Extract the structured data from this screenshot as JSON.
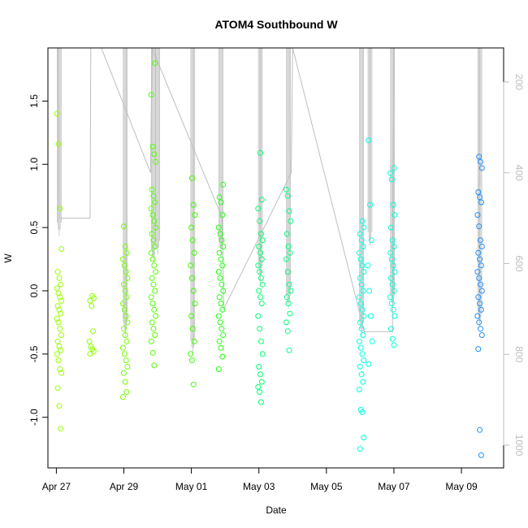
{
  "chart_data": {
    "type": "scatter",
    "title": "ATOM4 Southbound W",
    "xlabel": "Date",
    "ylabel": "W",
    "x_range": [
      "2012-04-26T18:00",
      "2012-05-10T06:00"
    ],
    "ylim": [
      -1.4,
      1.92
    ],
    "x_ticks": [
      {
        "date": "2012-04-27",
        "label": "Apr 27"
      },
      {
        "date": "2012-04-29",
        "label": "Apr 29"
      },
      {
        "date": "2012-05-01",
        "label": "May 01"
      },
      {
        "date": "2012-05-03",
        "label": "May 03"
      },
      {
        "date": "2012-05-05",
        "label": "May 05"
      },
      {
        "date": "2012-05-07",
        "label": "May 07"
      },
      {
        "date": "2012-05-09",
        "label": "May 09"
      }
    ],
    "y_ticks": [
      -1.0,
      -0.5,
      0.0,
      0.5,
      1.0,
      1.5
    ],
    "y2_ticks": [
      200,
      400,
      600,
      800,
      1000
    ],
    "y2_range": [
      125,
      1050
    ],
    "grid": false,
    "legend": "none",
    "marker": "open-circle",
    "color_encoding": "date (yellow-green to blue)",
    "groups": [
      {
        "time": "2012-04-27T02:00",
        "color": "#99ff00",
        "w": [
          1.4,
          1.16,
          0.65,
          0.33,
          0.15,
          0.1,
          0.05,
          0.02,
          -0.02,
          -0.05,
          -0.08,
          -0.12,
          -0.15,
          -0.18,
          -0.22,
          -0.25,
          -0.3,
          -0.35,
          -0.4,
          -0.44,
          -0.47,
          -0.5,
          -0.55,
          -0.62,
          -0.65,
          -0.77,
          -0.91,
          -1.09
        ]
      },
      {
        "time": "2012-04-28T01:00",
        "color": "#8cff00",
        "w": [
          -0.04,
          -0.06,
          -0.08,
          -0.12,
          -0.32,
          -0.4,
          -0.44,
          -0.46,
          -0.48,
          -0.5
        ]
      },
      {
        "time": "2012-04-29T01:00",
        "color": "#70ff00",
        "w": [
          0.51,
          0.35,
          0.3,
          0.25,
          0.2,
          0.15,
          0.1,
          0.05,
          0.0,
          -0.05,
          -0.1,
          -0.15,
          -0.2,
          -0.25,
          -0.3,
          -0.35,
          -0.4,
          -0.45,
          -0.5,
          -0.55,
          -0.6,
          -0.65,
          -0.72,
          -0.8,
          -0.84
        ]
      },
      {
        "time": "2012-04-29T21:00",
        "color": "#50ff00",
        "w": [
          1.8,
          1.55,
          1.14,
          1.08,
          1.02,
          0.8,
          0.75,
          0.7,
          0.65,
          0.6,
          0.55,
          0.5,
          0.45,
          0.4,
          0.35,
          0.3,
          0.25,
          0.2,
          0.15,
          0.1,
          0.05,
          0.0,
          -0.05,
          -0.1,
          -0.15,
          -0.2,
          -0.25,
          -0.3,
          -0.35,
          -0.4,
          -0.49,
          -0.59
        ]
      },
      {
        "time": "2012-05-01T01:00",
        "color": "#3aff00",
        "w": [
          0.89,
          0.68,
          0.6,
          0.5,
          0.4,
          0.3,
          0.2,
          0.1,
          0.0,
          -0.1,
          -0.2,
          -0.3,
          -0.4,
          -0.5,
          -0.55,
          -0.74
        ]
      },
      {
        "time": "2012-05-01T21:00",
        "color": "#22ff10",
        "w": [
          0.84,
          0.74,
          0.7,
          0.6,
          0.5,
          0.45,
          0.4,
          0.35,
          0.3,
          0.25,
          0.2,
          0.15,
          0.1,
          0.05,
          0.0,
          -0.05,
          -0.1,
          -0.15,
          -0.2,
          -0.25,
          -0.3,
          -0.35,
          -0.4,
          -0.45,
          -0.52,
          -0.62
        ]
      },
      {
        "time": "2012-05-03T01:00",
        "color": "#00ff70",
        "w": [
          1.09,
          0.72,
          0.65,
          0.55,
          0.45,
          0.4,
          0.35,
          0.3,
          0.25,
          0.2,
          0.15,
          0.1,
          0.05,
          0.0,
          -0.05,
          -0.1,
          -0.2,
          -0.3,
          -0.4,
          -0.5,
          -0.6,
          -0.66,
          -0.72,
          -0.76,
          -0.8,
          -0.88
        ]
      },
      {
        "time": "2012-05-03T21:00",
        "color": "#00ff80",
        "w": [
          0.8,
          0.75,
          0.63,
          0.55,
          0.45,
          0.35,
          0.3,
          0.25,
          0.15,
          0.05,
          0.0,
          -0.05,
          -0.1,
          -0.18,
          -0.25,
          -0.32,
          -0.47
        ]
      },
      {
        "time": "2012-05-06T01:00",
        "color": "#00ffe0",
        "w": [
          0.55,
          0.5,
          0.45,
          0.4,
          0.35,
          0.3,
          0.25,
          0.2,
          0.15,
          0.1,
          0.05,
          0.0,
          -0.05,
          -0.1,
          -0.15,
          -0.2,
          -0.25,
          -0.3,
          -0.35,
          -0.4,
          -0.45,
          -0.5,
          -0.55,
          -0.6,
          -0.66,
          -0.72,
          -0.78,
          -0.94,
          -0.96,
          -1.16,
          -1.25
        ]
      },
      {
        "time": "2012-05-06T07:00",
        "color": "#00ffe8",
        "w": [
          1.19,
          0.68,
          0.4,
          0.2,
          0.0,
          -0.2,
          -0.4,
          -0.58
        ]
      },
      {
        "time": "2012-05-06T23:00",
        "color": "#00ffd8",
        "w": [
          0.97,
          0.93,
          0.88,
          0.68,
          0.6,
          0.5,
          0.4,
          0.35,
          0.3,
          0.25,
          0.2,
          0.15,
          0.1,
          0.05,
          0.0,
          -0.05,
          -0.1,
          -0.15,
          -0.2,
          -0.3,
          -0.38,
          -0.43
        ]
      },
      {
        "time": "2012-05-09T13:00",
        "color": "#1e90ff",
        "w": [
          1.06,
          1.02,
          0.97,
          0.78,
          0.74,
          0.7,
          0.6,
          0.51,
          0.4,
          0.35,
          0.3,
          0.25,
          0.2,
          0.15,
          0.1,
          0.05,
          0.0,
          -0.05,
          -0.1,
          -0.15,
          -0.2,
          -0.25,
          -0.3,
          -0.35,
          -0.46,
          -1.1,
          -1.3
        ]
      }
    ],
    "secondary_trace": {
      "name": "depth",
      "color": "#bebebe",
      "points": [
        {
          "t": "2012-04-27T01:00",
          "d": 125
        },
        {
          "t": "2012-04-27T02:00",
          "d": 500
        },
        {
          "t": "2012-04-28T00:00",
          "d": 500
        },
        {
          "t": "2012-04-28T00:30",
          "d": 125
        },
        {
          "t": "2012-04-28T08:00",
          "d": 125
        },
        {
          "t": "2012-04-29T19:00",
          "d": 400
        },
        {
          "t": "2012-04-29T20:00",
          "d": 125
        },
        {
          "t": "2012-05-01T22:00",
          "d": 500
        },
        {
          "t": "2012-05-01T23:00",
          "d": 700
        },
        {
          "t": "2012-05-03T23:00",
          "d": 400
        },
        {
          "t": "2012-05-04T00:00",
          "d": 125
        },
        {
          "t": "2012-05-06T03:00",
          "d": 750
        },
        {
          "t": "2012-05-06T23:00",
          "d": 750
        },
        {
          "t": "2012-05-07T00:00",
          "d": 125
        },
        {
          "t": "2012-05-09T13:00",
          "d": 125
        }
      ],
      "casts": [
        {
          "t": "2012-04-27T02:00",
          "bottom": 540
        },
        {
          "t": "2012-04-29T01:00",
          "bottom": 760
        },
        {
          "t": "2012-04-29T21:00",
          "bottom": 600
        },
        {
          "t": "2012-04-30T00:00",
          "bottom": 580
        },
        {
          "t": "2012-05-01T01:00",
          "bottom": 800
        },
        {
          "t": "2012-05-01T21:00",
          "bottom": 580
        },
        {
          "t": "2012-05-03T01:00",
          "bottom": 640
        },
        {
          "t": "2012-05-03T21:00",
          "bottom": 700
        },
        {
          "t": "2012-05-06T01:00",
          "bottom": 760
        },
        {
          "t": "2012-05-06T07:00",
          "bottom": 560
        },
        {
          "t": "2012-05-06T23:00",
          "bottom": 700
        },
        {
          "t": "2012-05-09T13:00",
          "bottom": 740
        }
      ]
    }
  }
}
